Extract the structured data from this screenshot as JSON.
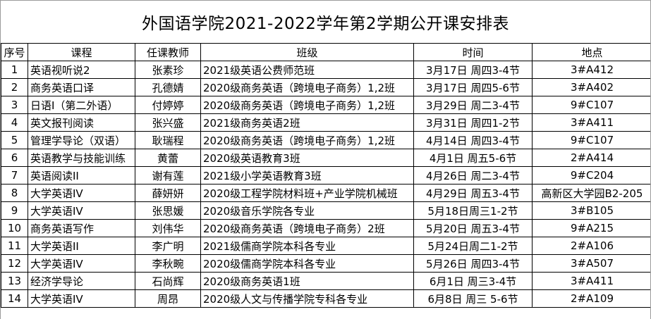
{
  "title": "外国语学院2021-2022学年第2学期公开课安排表",
  "table": {
    "columns": [
      {
        "key": "index",
        "label": "序号"
      },
      {
        "key": "course",
        "label": "课程"
      },
      {
        "key": "teacher",
        "label": "任课教师"
      },
      {
        "key": "class",
        "label": "班级"
      },
      {
        "key": "time",
        "label": "时间"
      },
      {
        "key": "location",
        "label": "地点"
      }
    ],
    "rows": [
      [
        "1",
        "英语视听说2",
        "张素珍",
        "2021级英语公费师范班",
        "3月17日 周四3-4节",
        "3#A412"
      ],
      [
        "2",
        "商务英语口译",
        "孔德婧",
        "2020级商务英语（跨境电子商务）1,2班",
        "3月17日 周四5-6节",
        "3#A402"
      ],
      [
        "3",
        "日语I（第二外语）",
        "付婷婷",
        "2020级商务英语（跨境电子商务）1,2班",
        "3月29日 周二3-4节",
        "9#C107"
      ],
      [
        "4",
        "英文报刊阅读",
        "张兴盛",
        "2021级商务英语2班",
        "3月31日 周四1-2节",
        "3#A411"
      ],
      [
        "5",
        "管理学导论（双语）",
        "耿瑞程",
        "2020级商务英语（跨境电子商务）1,2班",
        "4月14日 周四3-4节",
        "9#C107"
      ],
      [
        "6",
        "英语教学与技能训练",
        "黄蕾",
        "2020级英语教育3班",
        "4月1日 周五5-6节",
        "2#A414"
      ],
      [
        "7",
        "英语阅读II",
        "谢有莲",
        "2021级小学英语教育3班",
        "4月26日 周二3-4节",
        "9#C204"
      ],
      [
        "8",
        "大学英语IV",
        "薛妍妍",
        "2020级工程学院材料班+产业学院机械班",
        "4月29日 周五3-4节",
        "高新区大学园B2-205"
      ],
      [
        "9",
        "大学英语IV",
        "张思媛",
        "2020级音乐学院各专业",
        "5月18日周三1-2节",
        "3#B105"
      ],
      [
        "10",
        "商务英语写作",
        "刘伟华",
        "2020级商务英语（跨境电子商务）2班",
        "5月20日 周五3-4节",
        "9#A215"
      ],
      [
        "11",
        "大学英语II",
        "李广明",
        "2021级儒商学院本科各专业",
        "5月24日周二1-2节",
        "2#A106"
      ],
      [
        "12",
        "大学英语IV",
        "李秋畹",
        "2020级儒商学院本科各专业",
        "5月26日 周四3-4节",
        "3#A507"
      ],
      [
        "13",
        "经济学导论",
        "石尚辉",
        "2020级商务英语1班",
        "6月1日 周三3-4节",
        "3#A411"
      ],
      [
        "14",
        "大学英语IV",
        "周昂",
        "2020级人文与传播学院专科各专业",
        "6月8日 周三 5-6节",
        "2#A109"
      ]
    ]
  },
  "colors": {
    "grid": "#000000",
    "outer_edge": "#9b9b9b",
    "background": "#ffffff",
    "text": "#000000"
  }
}
